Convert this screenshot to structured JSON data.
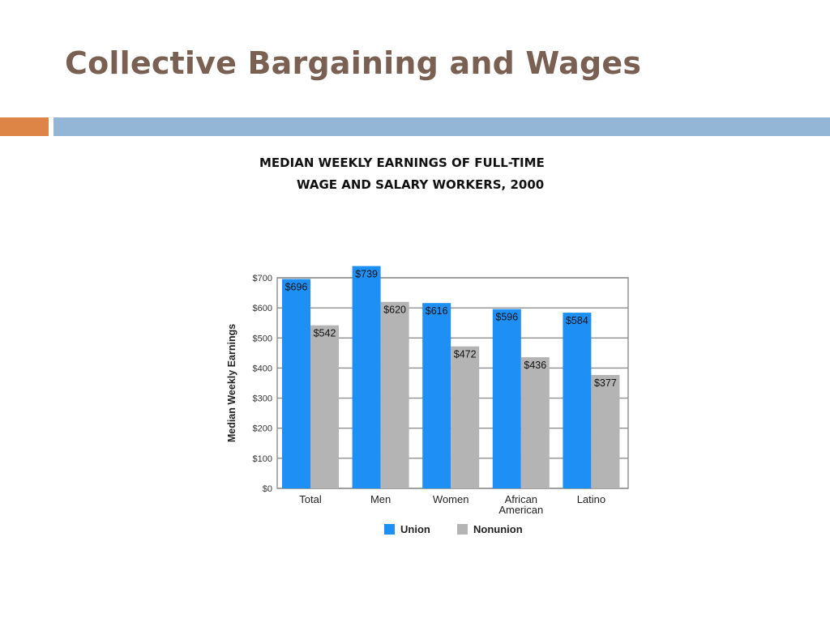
{
  "slide": {
    "title": "Collective Bargaining and Wages",
    "accent_color": "#dd8447",
    "band_color": "#93b6d6"
  },
  "chart_heading": {
    "line1": "MEDIAN WEEKLY EARNINGS OF FULL-TIME",
    "line2": "WAGE AND SALARY WORKERS, 2000"
  },
  "chart_data": {
    "type": "bar",
    "title": "MEDIAN WEEKLY EARNINGS OF FULL-TIME WAGE AND SALARY WORKERS, 2000",
    "ylabel": "Median Weekly Earnings",
    "xlabel": "",
    "ylim": [
      0,
      700
    ],
    "yticks": [
      0,
      100,
      200,
      300,
      400,
      500,
      600,
      700
    ],
    "ytick_labels": [
      "$0",
      "$100",
      "$200",
      "$300",
      "$400",
      "$500",
      "$600",
      "$700"
    ],
    "grid": true,
    "legend": "bottom",
    "categories": [
      [
        "Total"
      ],
      [
        "Men"
      ],
      [
        "Women"
      ],
      [
        "African",
        "American"
      ],
      [
        "Latino"
      ]
    ],
    "series": [
      {
        "name": "Union",
        "color": "#1e90f5",
        "values": [
          696,
          739,
          616,
          596,
          584
        ],
        "labels": [
          "$696",
          "$739",
          "$616",
          "$596",
          "$584"
        ]
      },
      {
        "name": "Nonunion",
        "color": "#b4b4b4",
        "values": [
          542,
          620,
          472,
          436,
          377
        ],
        "labels": [
          "$542",
          "$620",
          "$472",
          "$436",
          "$377"
        ]
      }
    ]
  }
}
